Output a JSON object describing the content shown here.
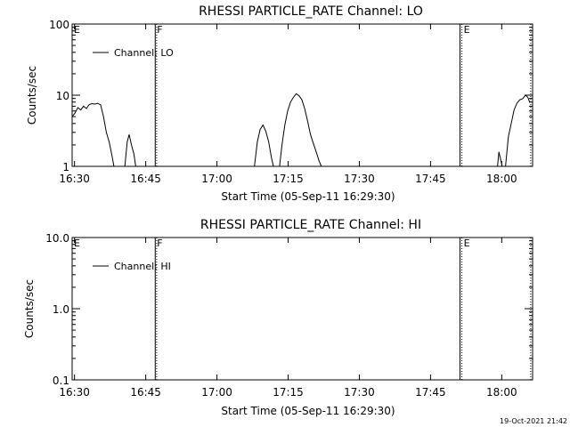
{
  "footer": {
    "timestamp": "19-Oct-2021 21:42"
  },
  "chart_data": [
    {
      "type": "line",
      "title": "RHESSI PARTICLE_RATE Channel: LO",
      "xlabel": "Start Time (05-Sep-11 16:29:30)",
      "ylabel": "Counts/sec",
      "yscale": "log",
      "xlim_minutes": [
        0,
        97
      ],
      "ylim": [
        1,
        100
      ],
      "x_ticks": [
        "16:30",
        "16:45",
        "17:00",
        "17:15",
        "17:30",
        "17:45",
        "18:00"
      ],
      "x_tick_values": [
        0.5,
        15.5,
        30.5,
        45.5,
        60.5,
        75.5,
        90.5
      ],
      "y_ticks": [
        "1",
        "10",
        "100"
      ],
      "y_tick_values": [
        1,
        10,
        100
      ],
      "legend": "Channel: LO",
      "legend_position": "top-left",
      "markers": [
        {
          "label": "E",
          "x": 0.0,
          "style": "none"
        },
        {
          "label": "F",
          "x": 17.5,
          "style": "solid"
        },
        {
          "label": "",
          "x": 17.8,
          "style": "dotted"
        },
        {
          "label": "",
          "x": 81.7,
          "style": "solid"
        },
        {
          "label": "E",
          "x": 82.1,
          "style": "dotted"
        },
        {
          "label": "",
          "x": 96.6,
          "style": "dotted"
        }
      ],
      "series": [
        {
          "values": [
            [
              0.0,
              5.0
            ],
            [
              0.6,
              5.6
            ],
            [
              1.2,
              6.7
            ],
            [
              1.8,
              6.2
            ],
            [
              2.4,
              7.0
            ],
            [
              3.0,
              6.5
            ],
            [
              3.6,
              7.4
            ],
            [
              4.2,
              7.6
            ],
            [
              4.8,
              7.5
            ],
            [
              5.4,
              7.7
            ],
            [
              6.0,
              7.3
            ],
            [
              6.6,
              5.0
            ],
            [
              7.2,
              3.0
            ],
            [
              7.8,
              2.2
            ],
            [
              8.4,
              1.4
            ],
            [
              8.8,
              1.0
            ]
          ]
        },
        {
          "values": [
            [
              11.1,
              1.0
            ],
            [
              11.6,
              2.2
            ],
            [
              12.0,
              2.8
            ],
            [
              12.5,
              2.0
            ],
            [
              13.0,
              1.5
            ],
            [
              13.4,
              1.0
            ]
          ]
        },
        {
          "values": [
            [
              38.4,
              1.0
            ],
            [
              39.0,
              2.2
            ],
            [
              39.6,
              3.3
            ],
            [
              40.2,
              3.8
            ],
            [
              40.8,
              3.1
            ],
            [
              41.4,
              2.2
            ],
            [
              42.0,
              1.3
            ],
            [
              42.4,
              1.0
            ]
          ]
        },
        {
          "values": [
            [
              43.7,
              1.0
            ],
            [
              44.2,
              2.0
            ],
            [
              44.8,
              3.8
            ],
            [
              45.4,
              6.0
            ],
            [
              46.0,
              8.0
            ],
            [
              46.6,
              9.3
            ],
            [
              47.2,
              10.5
            ],
            [
              47.8,
              9.8
            ],
            [
              48.4,
              8.6
            ],
            [
              49.0,
              6.4
            ],
            [
              49.6,
              4.3
            ],
            [
              50.2,
              2.8
            ],
            [
              50.8,
              2.1
            ],
            [
              51.4,
              1.6
            ],
            [
              52.0,
              1.2
            ],
            [
              52.5,
              1.0
            ]
          ]
        },
        {
          "values": [
            [
              89.6,
              1.0
            ],
            [
              89.9,
              1.6
            ],
            [
              90.2,
              1.3
            ],
            [
              90.6,
              1.0
            ]
          ]
        },
        {
          "values": [
            [
              91.3,
              1.0
            ],
            [
              91.9,
              2.6
            ],
            [
              92.5,
              4.0
            ],
            [
              93.1,
              6.2
            ],
            [
              93.7,
              7.7
            ],
            [
              94.3,
              8.6
            ],
            [
              94.9,
              8.9
            ],
            [
              95.5,
              10.0
            ],
            [
              96.0,
              9.3
            ],
            [
              96.4,
              7.9
            ]
          ]
        }
      ]
    },
    {
      "type": "line",
      "title": "RHESSI PARTICLE_RATE Channel: HI",
      "xlabel": "Start Time (05-Sep-11 16:29:30)",
      "ylabel": "Counts/sec",
      "yscale": "log",
      "xlim_minutes": [
        0,
        97
      ],
      "ylim": [
        0.1,
        10
      ],
      "x_ticks": [
        "16:30",
        "16:45",
        "17:00",
        "17:15",
        "17:30",
        "17:45",
        "18:00"
      ],
      "x_tick_values": [
        0.5,
        15.5,
        30.5,
        45.5,
        60.5,
        75.5,
        90.5
      ],
      "y_ticks": [
        "0.1",
        "1.0",
        "10.0"
      ],
      "y_tick_values": [
        0.1,
        1,
        10
      ],
      "legend": "Channel: HI",
      "legend_position": "top-left",
      "markers": [
        {
          "label": "E",
          "x": 0.0,
          "style": "none"
        },
        {
          "label": "F",
          "x": 17.5,
          "style": "solid"
        },
        {
          "label": "",
          "x": 17.8,
          "style": "dotted"
        },
        {
          "label": "",
          "x": 81.7,
          "style": "solid"
        },
        {
          "label": "E",
          "x": 82.1,
          "style": "dotted"
        },
        {
          "label": "",
          "x": 96.6,
          "style": "dotted"
        }
      ],
      "series": []
    }
  ]
}
